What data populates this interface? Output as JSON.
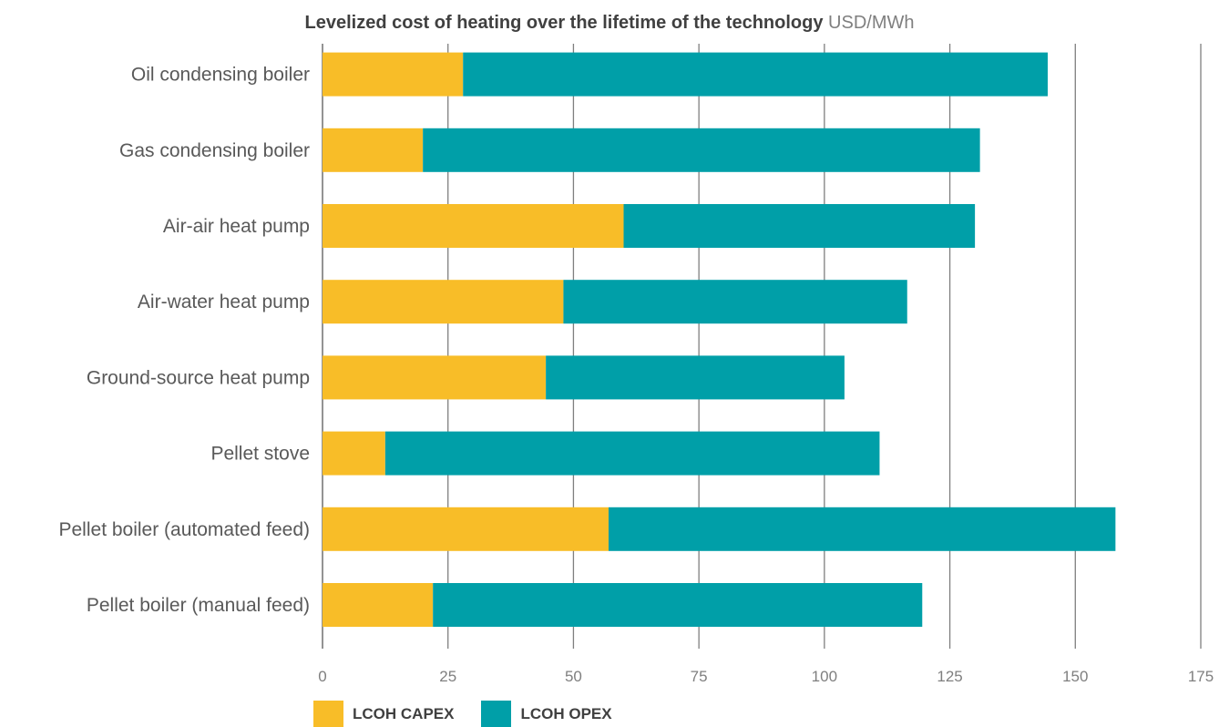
{
  "chart_data": {
    "type": "bar",
    "orientation": "horizontal",
    "stacked": true,
    "title": "Levelized cost of heating over the lifetime of the technology",
    "unit": "USD/MWh",
    "categories": [
      "Oil condensing boiler",
      "Gas condensing boiler",
      "Air-air heat pump",
      "Air-water heat pump",
      "Ground-source heat pump",
      "Pellet stove",
      "Pellet boiler (automated feed)",
      "Pellet boiler (manual feed)"
    ],
    "series": [
      {
        "name": "LCOH CAPEX",
        "color": "#F8BD28",
        "values": [
          28,
          20,
          60,
          48,
          44.5,
          12.5,
          57,
          22
        ]
      },
      {
        "name": "LCOH OPEX",
        "color": "#009FA8",
        "values": [
          116.5,
          111,
          70,
          68.5,
          59.5,
          98.5,
          101,
          97.5
        ]
      }
    ],
    "xlim": [
      0,
      175
    ],
    "xticks": [
      "0",
      "25",
      "50",
      "75",
      "100",
      "125",
      "150",
      "175"
    ],
    "grid": "vertical",
    "legend_position": "bottom-left"
  }
}
